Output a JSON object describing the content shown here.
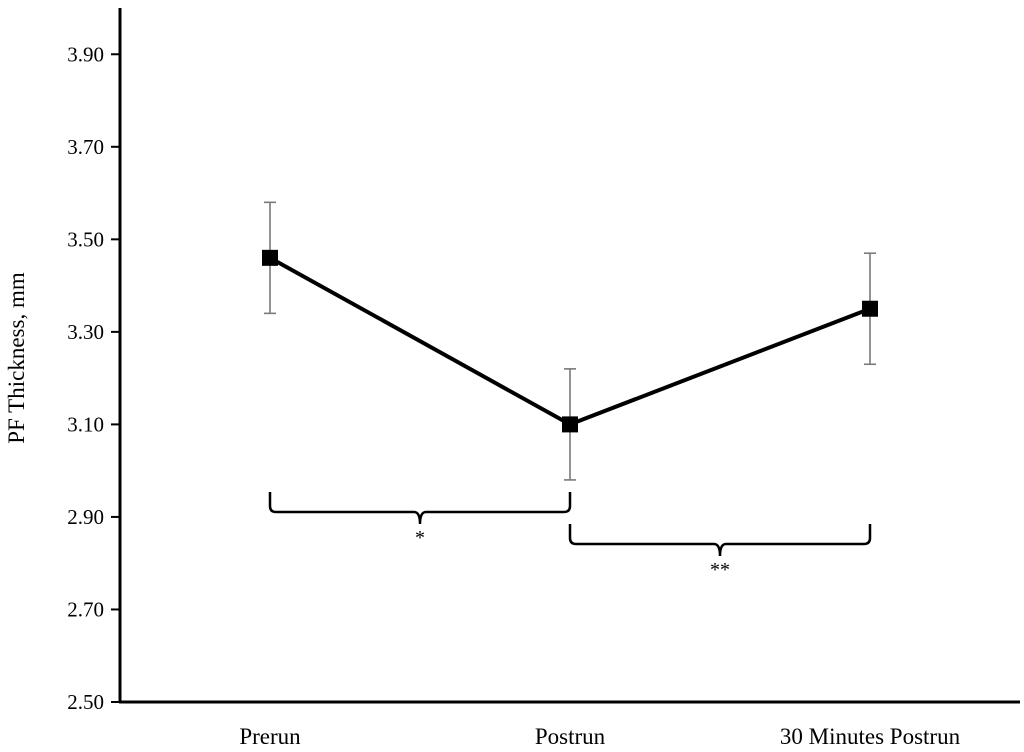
{
  "chart_data": {
    "type": "line",
    "title": "",
    "xlabel": "",
    "ylabel": "PF Thickness, mm",
    "categories": [
      "Prerun",
      "Postrun",
      "30 Minutes Postrun"
    ],
    "series": [
      {
        "values": [
          3.46,
          3.1,
          3.35
        ],
        "error": [
          0.12,
          0.12,
          0.12
        ],
        "color": "#000000",
        "marker": "square"
      }
    ],
    "ylim": [
      2.5,
      4.0
    ],
    "yticks": [
      "2.50",
      "2.70",
      "2.90",
      "3.10",
      "3.30",
      "3.50",
      "3.70",
      "3.90"
    ],
    "grid": false,
    "annotations": [
      {
        "from_category": 0,
        "to_category": 1,
        "label": "*"
      },
      {
        "from_category": 1,
        "to_category": 2,
        "label": "**"
      }
    ]
  }
}
